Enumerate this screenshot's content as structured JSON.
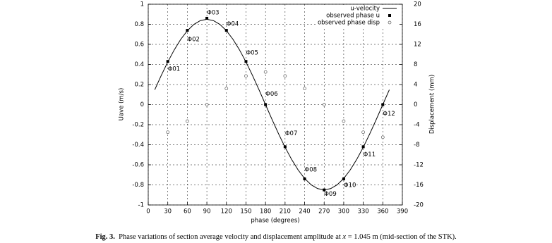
{
  "chart_data": {
    "type": "line",
    "x_label": "phase (degrees)",
    "y_label": "Uave (m/s)",
    "y2_label": "Displacement (mm)",
    "xlim": [
      0,
      390
    ],
    "xticks": [
      0,
      30,
      60,
      90,
      120,
      150,
      180,
      210,
      240,
      270,
      300,
      330,
      360,
      390
    ],
    "ylim": [
      -1,
      1
    ],
    "yticks": [
      -1,
      -0.8,
      -0.6,
      -0.4,
      -0.2,
      0,
      0.2,
      0.4,
      0.6,
      0.8,
      1
    ],
    "y2lim": [
      -20,
      20
    ],
    "y2ticks": [
      -20,
      -16,
      -12,
      -8,
      -4,
      0,
      4,
      8,
      12,
      16,
      20
    ],
    "grid": true,
    "legend": "upper right",
    "series": [
      {
        "name": "u-velocity",
        "color": "#000000",
        "style": "line",
        "x": [
          10,
          20,
          30,
          40,
          50,
          60,
          70,
          80,
          90,
          100,
          110,
          120,
          130,
          140,
          150,
          160,
          170,
          180,
          190,
          200,
          210,
          220,
          230,
          240,
          250,
          260,
          270,
          280,
          290,
          300,
          310,
          320,
          330,
          340,
          350,
          360,
          370
        ],
        "values": [
          0.148,
          0.291,
          0.425,
          0.546,
          0.651,
          0.736,
          0.799,
          0.837,
          0.85,
          0.837,
          0.799,
          0.736,
          0.651,
          0.546,
          0.425,
          0.291,
          0.148,
          0,
          -0.148,
          -0.291,
          -0.425,
          -0.546,
          -0.651,
          -0.736,
          -0.799,
          -0.837,
          -0.85,
          -0.837,
          -0.799,
          -0.736,
          -0.651,
          -0.546,
          -0.425,
          -0.291,
          -0.148,
          0,
          0.148
        ]
      },
      {
        "name": "observed phase u",
        "color": "#000000",
        "style": "square",
        "x": [
          30,
          60,
          90,
          120,
          150,
          180,
          210,
          240,
          270,
          300,
          330,
          360
        ],
        "values": [
          0.43,
          0.74,
          0.86,
          0.74,
          0.43,
          0,
          -0.42,
          -0.74,
          -0.85,
          -0.74,
          -0.42,
          0
        ],
        "point_labels": [
          "Φ01",
          "Φ02",
          "Φ03",
          "Φ04",
          "Φ05",
          "Φ06",
          "Φ07",
          "Φ08",
          "Φ09",
          "Φ10",
          "Φ11",
          "Φ12"
        ]
      },
      {
        "name": "observed phase disp",
        "color": "#555555",
        "style": "circle",
        "axis": "y2",
        "x": [
          30,
          60,
          90,
          120,
          150,
          180,
          210,
          240,
          270,
          300,
          330,
          360
        ],
        "values": [
          -5.5,
          -3.3,
          0,
          3.2,
          5.7,
          6.5,
          5.7,
          3.2,
          0,
          -3.3,
          -5.5,
          -6.5
        ]
      }
    ]
  },
  "caption": {
    "label": "Fig. 3.",
    "text_before": "Phase variations of section average velocity and displacement amplitude at",
    "variable": "x",
    "text_after": "= 1.045 m (mid-section of the STK)."
  }
}
